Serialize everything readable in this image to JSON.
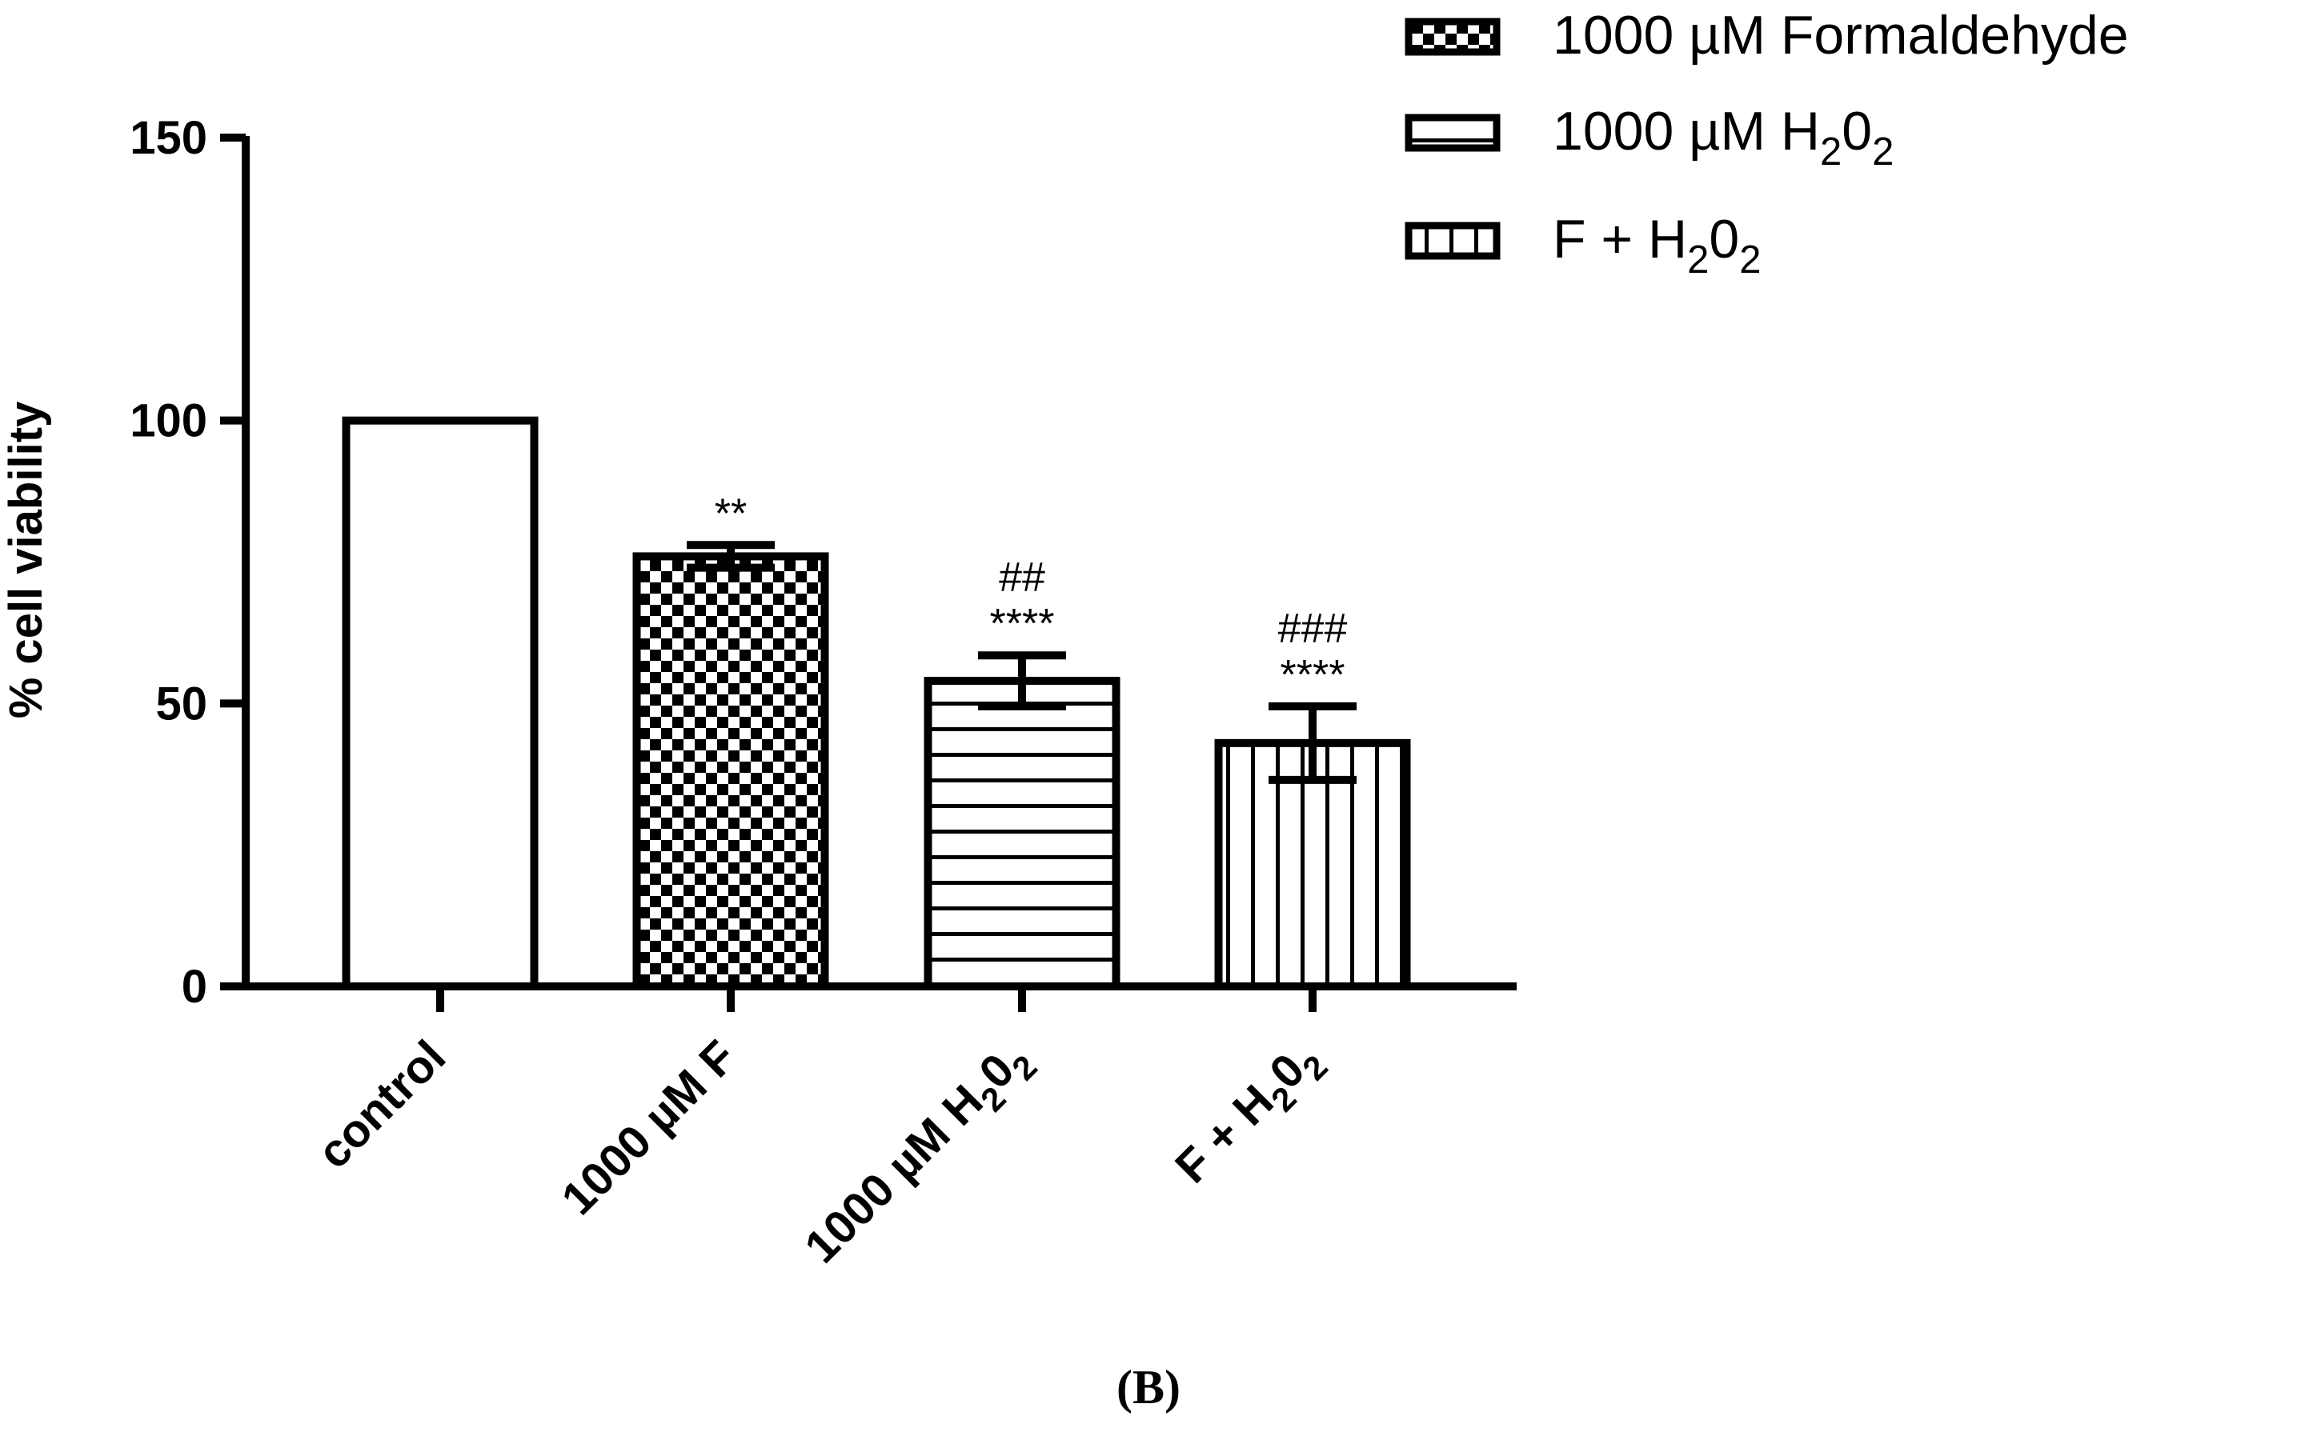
{
  "panel_label": "(B)",
  "chart_data": {
    "type": "bar",
    "ylabel": "% cell viability",
    "xlabel": "",
    "ylim": [
      0,
      150
    ],
    "yticks": [
      0,
      50,
      100,
      150
    ],
    "grid": false,
    "legend_position": "top-right",
    "categories": [
      {
        "label": "control",
        "sub": ""
      },
      {
        "label": "1000 µM F",
        "sub": ""
      },
      {
        "label": "1000 µM H",
        "sub": "2",
        "label2": "0",
        "sub2": "2"
      },
      {
        "label": "F + H",
        "sub": "2",
        "label2": "0",
        "sub2": "2"
      }
    ],
    "values": [
      100,
      76,
      54,
      43
    ],
    "errors": [
      0,
      2,
      4.5,
      6.5
    ],
    "patterns": [
      "none",
      "checker",
      "hlines",
      "vlines"
    ],
    "annotations": [
      [],
      [
        "**"
      ],
      [
        "##",
        "****"
      ],
      [
        "###",
        "****"
      ]
    ],
    "legend": [
      {
        "pattern": "checker",
        "text": "1000 µM Formaldehyde",
        "sub": "",
        "text2": "",
        "sub2": ""
      },
      {
        "pattern": "hlines",
        "text": "1000 µM H",
        "sub": "2",
        "text2": "0",
        "sub2": "2"
      },
      {
        "pattern": "vlines",
        "text": "F + H",
        "sub": "2",
        "text2": "0",
        "sub2": "2"
      }
    ]
  }
}
